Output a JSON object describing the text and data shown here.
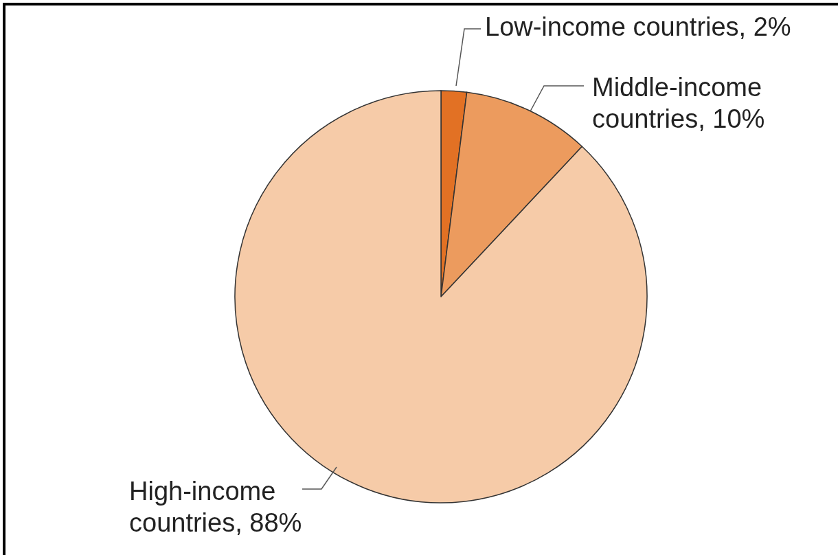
{
  "chart_data": {
    "type": "pie",
    "categories": [
      "Low-income countries",
      "Middle-income countries",
      "High-income countries"
    ],
    "values": [
      2,
      10,
      88
    ],
    "value_labels": [
      "2%",
      "10%",
      "88%"
    ],
    "colors": [
      "#e27124",
      "#ec9b5e",
      "#f6cba8"
    ]
  }
}
